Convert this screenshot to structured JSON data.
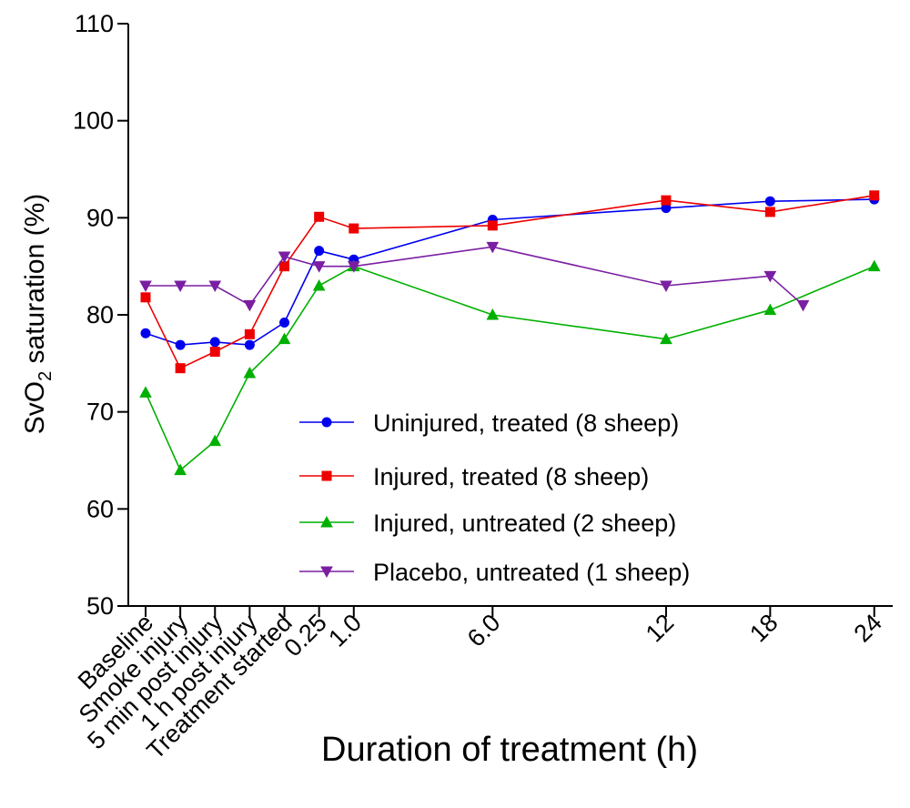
{
  "chart_data": {
    "type": "line",
    "xlabel": "Duration of treatment (h)",
    "ylabel_main": "SvO",
    "ylabel_sub": "2",
    "ylabel_rest": " saturation (%)",
    "ylim": [
      50,
      110
    ],
    "yticks": [
      "50",
      "60",
      "70",
      "80",
      "90",
      "100",
      "110"
    ],
    "grid": false,
    "legend_position": "center-right",
    "x_ticks": [
      {
        "label": "Baseline",
        "pos": 0
      },
      {
        "label": "Smoke injury",
        "pos": 1
      },
      {
        "label": "5 min post injury",
        "pos": 2
      },
      {
        "label": "1 h post injury",
        "pos": 3
      },
      {
        "label": "Treatment started",
        "pos": 4
      },
      {
        "label": "0.25",
        "pos": 5
      },
      {
        "label": "1.0",
        "pos": 6
      },
      {
        "label": "6.0",
        "pos": 10
      },
      {
        "label": "12",
        "pos": 15
      },
      {
        "label": "18",
        "pos": 18
      },
      {
        "label": "24",
        "pos": 21
      }
    ],
    "series": [
      {
        "name": "Uninjured, treated (8 sheep)",
        "color": "#0000ee",
        "marker": "circle",
        "x": [
          0,
          1,
          2,
          3,
          4,
          5,
          6,
          10,
          15,
          18,
          21
        ],
        "y": [
          78.1,
          76.9,
          77.2,
          76.9,
          79.2,
          86.6,
          85.7,
          89.8,
          91.0,
          91.7,
          91.9
        ]
      },
      {
        "name": "Injured, treated (8 sheep)",
        "color": "#ee0000",
        "marker": "square",
        "x": [
          0,
          1,
          2,
          3,
          4,
          5,
          6,
          10,
          15,
          18,
          21
        ],
        "y": [
          81.8,
          74.5,
          76.2,
          78.0,
          85.0,
          90.1,
          88.9,
          89.2,
          91.8,
          90.6,
          92.3
        ]
      },
      {
        "name": "Injured, untreated (2 sheep)",
        "color": "#00b000",
        "marker": "triangle-up",
        "x": [
          0,
          1,
          2,
          3,
          4,
          5,
          6,
          10,
          15,
          18,
          21
        ],
        "y": [
          72.0,
          64.0,
          67.0,
          74.0,
          77.5,
          83.0,
          85.0,
          80.0,
          77.5,
          80.5,
          85.0
        ]
      },
      {
        "name": "Placebo, untreated (1 sheep)",
        "color": "#7a1fa2",
        "marker": "triangle-down",
        "x": [
          0,
          1,
          2,
          3,
          4,
          5,
          6,
          10,
          15,
          18,
          18.95
        ],
        "y": [
          83.0,
          83.0,
          83.0,
          81.0,
          86.0,
          85.0,
          85.0,
          87.0,
          83.0,
          84.0,
          81.0
        ]
      }
    ]
  }
}
